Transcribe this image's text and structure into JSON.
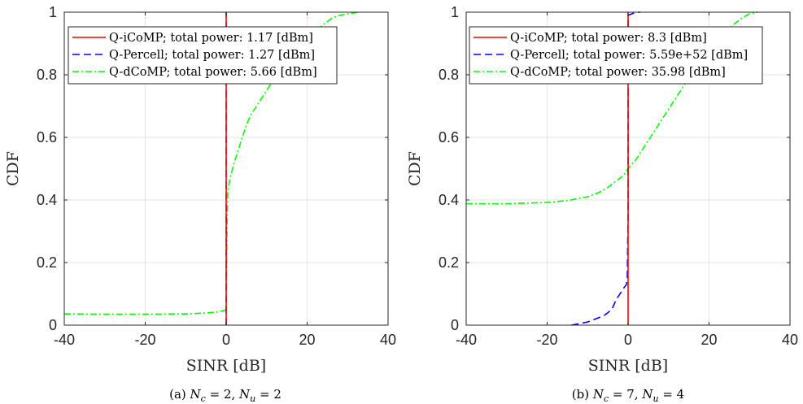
{
  "chart_data": [
    {
      "type": "line",
      "caption": "(a) N_c = 2, N_u = 2",
      "caption_prefix": "(a)",
      "caption_math": "Nc = 2, Nu = 2",
      "xlabel": "SINR [dB]",
      "ylabel": "CDF",
      "xlim": [
        -40,
        40
      ],
      "ylim": [
        0,
        1
      ],
      "xticks": [
        "-40",
        "-20",
        "0",
        "20",
        "40"
      ],
      "yticks": [
        "0",
        "0.2",
        "0.4",
        "0.6",
        "0.8",
        "1"
      ],
      "grid": true,
      "legend_position": "top-left",
      "series": [
        {
          "name": "Q-iCoMP; total power: 1.17 [dBm]",
          "color": "#ff0000",
          "style": "solid",
          "points": [
            [
              0,
              0
            ],
            [
              0,
              1
            ]
          ]
        },
        {
          "name": "Q-Percell; total power: 1.27 [dBm]",
          "color": "#0000ff",
          "style": "dashed",
          "points": [
            [
              0,
              0
            ],
            [
              0,
              1
            ]
          ]
        },
        {
          "name": "Q-dCoMP; total power: 5.66 [dBm]",
          "color": "#00ff00",
          "style": "dashdot",
          "points": [
            [
              -40,
              0.036
            ],
            [
              -30,
              0.035
            ],
            [
              -20,
              0.035
            ],
            [
              -10,
              0.036
            ],
            [
              -5,
              0.039
            ],
            [
              -2,
              0.042
            ],
            [
              -0.5,
              0.047
            ],
            [
              0,
              0.05
            ],
            [
              0.2,
              0.3
            ],
            [
              0.4,
              0.43
            ],
            [
              1,
              0.47
            ],
            [
              2,
              0.52
            ],
            [
              3,
              0.56
            ],
            [
              4,
              0.6
            ],
            [
              5,
              0.64
            ],
            [
              6,
              0.67
            ],
            [
              8,
              0.71
            ],
            [
              10,
              0.75
            ],
            [
              12,
              0.79
            ],
            [
              14,
              0.82
            ],
            [
              16,
              0.85
            ],
            [
              18,
              0.88
            ],
            [
              20,
              0.91
            ],
            [
              22,
              0.94
            ],
            [
              24,
              0.96
            ],
            [
              26,
              0.98
            ],
            [
              28,
              0.99
            ],
            [
              30,
              0.995
            ],
            [
              33,
              1.0
            ]
          ]
        }
      ]
    },
    {
      "type": "line",
      "caption": "(b) N_c = 7, N_u = 4",
      "caption_prefix": "(b)",
      "caption_math": "Nc = 7, Nu = 4",
      "xlabel": "SINR [dB]",
      "ylabel": "CDF",
      "xlim": [
        -40,
        40
      ],
      "ylim": [
        0,
        1
      ],
      "xticks": [
        "-40",
        "-20",
        "0",
        "20",
        "40"
      ],
      "yticks": [
        "0",
        "0.2",
        "0.4",
        "0.6",
        "0.8",
        "1"
      ],
      "grid": true,
      "legend_position": "top-left",
      "series": [
        {
          "name": "Q-iCoMP; total power: 8.3 [dBm]",
          "color": "#ff0000",
          "style": "solid",
          "points": [
            [
              0,
              0
            ],
            [
              0,
              1
            ]
          ]
        },
        {
          "name": "Q-Percell; total power: 5.59e+52 [dBm]",
          "color": "#0000ff",
          "style": "dashed",
          "points": [
            [
              -14,
              0
            ],
            [
              -12,
              0.005
            ],
            [
              -10,
              0.01
            ],
            [
              -8,
              0.02
            ],
            [
              -6,
              0.03
            ],
            [
              -4,
              0.05
            ],
            [
              -3,
              0.08
            ],
            [
              -2,
              0.1
            ],
            [
              -1,
              0.12
            ],
            [
              -0.4,
              0.13
            ],
            [
              -0.2,
              0.15
            ],
            [
              0,
              0.35
            ],
            [
              0,
              0.99
            ],
            [
              1,
              0.995
            ],
            [
              2,
              1.0
            ],
            [
              3,
              1.0
            ]
          ]
        },
        {
          "name": "Q-dCoMP; total power: 35.98 [dBm]",
          "color": "#00ff00",
          "style": "dashdot",
          "points": [
            [
              -40,
              0.388
            ],
            [
              -30,
              0.388
            ],
            [
              -25,
              0.39
            ],
            [
              -20,
              0.392
            ],
            [
              -15,
              0.398
            ],
            [
              -10,
              0.41
            ],
            [
              -7,
              0.425
            ],
            [
              -5,
              0.44
            ],
            [
              -3,
              0.46
            ],
            [
              -1,
              0.48
            ],
            [
              0,
              0.5
            ],
            [
              2,
              0.53
            ],
            [
              4,
              0.57
            ],
            [
              6,
              0.61
            ],
            [
              8,
              0.65
            ],
            [
              10,
              0.69
            ],
            [
              12,
              0.73
            ],
            [
              14,
              0.77
            ],
            [
              16,
              0.8
            ],
            [
              18,
              0.84
            ],
            [
              20,
              0.87
            ],
            [
              22,
              0.9
            ],
            [
              24,
              0.93
            ],
            [
              26,
              0.96
            ],
            [
              28,
              0.98
            ],
            [
              30,
              0.995
            ],
            [
              32,
              1.0
            ]
          ]
        }
      ]
    }
  ]
}
